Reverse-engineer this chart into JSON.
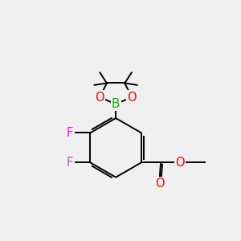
{
  "background_color": "#f0f0f0",
  "bond_color": "#000000",
  "atom_colors": {
    "B": "#00bb00",
    "O": "#ff0000",
    "F_top": "#ff00ff",
    "F_bot": "#cc44cc",
    "C": "#000000"
  },
  "line_width": 1.4,
  "font_size": 10.5,
  "figsize": [
    3.0,
    3.0
  ],
  "dpi": 100
}
